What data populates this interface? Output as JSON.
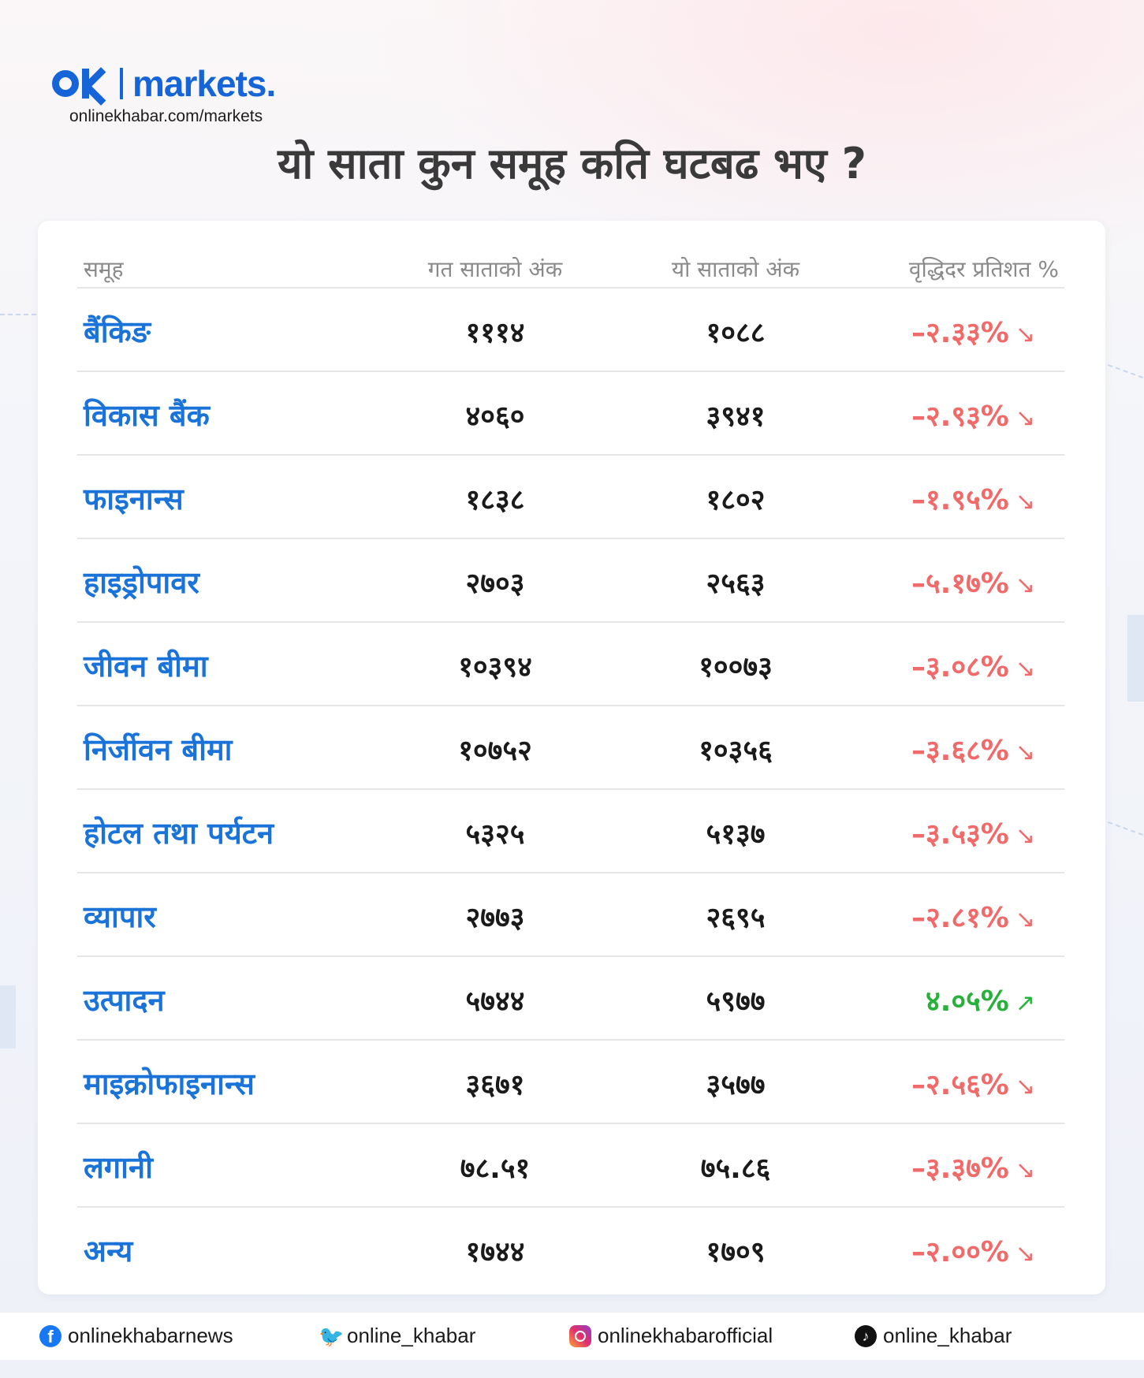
{
  "brand": {
    "logo_text": "OK",
    "name": "markets.",
    "url": "onlinekhabar.com/markets"
  },
  "title": "यो साता कुन समूह कति घटबढ भए ?",
  "table": {
    "headers": {
      "group": "समूह",
      "last_week": "गत साताको अंक",
      "this_week": "यो साताको अंक",
      "growth": "वृद्धिदर प्रतिशत %"
    },
    "rows": [
      {
        "name": "बैंकिङ",
        "last": "१११४",
        "this": "१०८८",
        "pct": "–२.३३%",
        "trend": "down",
        "arrow": "↘"
      },
      {
        "name": "विकास बैंक",
        "last": "४०६०",
        "this": "३९४१",
        "pct": "–२.९३%",
        "trend": "down",
        "arrow": "↘"
      },
      {
        "name": "फाइनान्स",
        "last": "१८३८",
        "this": "१८०२",
        "pct": "–१.९५%",
        "trend": "down",
        "arrow": "↘"
      },
      {
        "name": "हाइड्रोपावर",
        "last": "२७०३",
        "this": "२५६३",
        "pct": "–५.१७%",
        "trend": "down",
        "arrow": "↘"
      },
      {
        "name": "जीवन बीमा",
        "last": "१०३९४",
        "this": "१००७३",
        "pct": "–३.०८%",
        "trend": "down",
        "arrow": "↘"
      },
      {
        "name": "निर्जीवन बीमा",
        "last": "१०७५२",
        "this": "१०३५६",
        "pct": "–३.६८%",
        "trend": "down",
        "arrow": "↘"
      },
      {
        "name": "होटल तथा पर्यटन",
        "last": "५३२५",
        "this": "५१३७",
        "pct": "–३.५३%",
        "trend": "down",
        "arrow": "↘"
      },
      {
        "name": "व्यापार",
        "last": "२७७३",
        "this": "२६९५",
        "pct": "–२.८१%",
        "trend": "down",
        "arrow": "↘"
      },
      {
        "name": "उत्पादन",
        "last": "५७४४",
        "this": "५९७७",
        "pct": "४.०५%",
        "trend": "up",
        "arrow": "↗"
      },
      {
        "name": "माइक्रोफाइनान्स",
        "last": "३६७१",
        "this": "३५७७",
        "pct": "–२.५६%",
        "trend": "down",
        "arrow": "↘"
      },
      {
        "name": "लगानी",
        "last": "७८.५१",
        "this": "७५.८६",
        "pct": "–३.३७%",
        "trend": "down",
        "arrow": "↘"
      },
      {
        "name": "अन्य",
        "last": "१७४४",
        "this": "१७०९",
        "pct": "–२.००%",
        "trend": "down",
        "arrow": "↘"
      }
    ]
  },
  "footer": {
    "facebook": {
      "icon": "facebook-icon",
      "handle": "onlinekhabarnews"
    },
    "twitter": {
      "icon": "twitter-icon",
      "handle": "online_khabar"
    },
    "instagram": {
      "icon": "instagram-icon",
      "handle": "onlinekhabarofficial"
    },
    "tiktok": {
      "icon": "tiktok-icon",
      "handle": "online_khabar"
    }
  },
  "colors": {
    "brand_blue": "#1565d8",
    "group_blue": "#1a73d9",
    "negative_red": "#f06a6a",
    "positive_green": "#27b13b"
  }
}
